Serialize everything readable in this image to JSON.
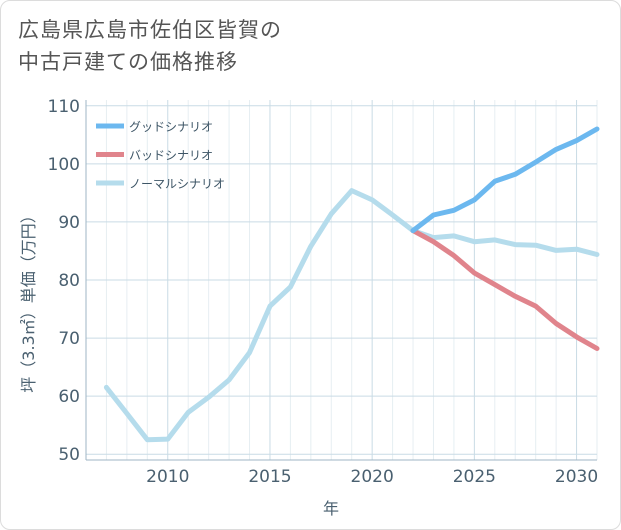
{
  "title_lines": [
    "広島県広島市佐伯区皆賀の",
    "中古戸建ての価格推移"
  ],
  "chart_data": {
    "type": "line",
    "xlabel": "年",
    "ylabel": "坪（3.3㎡）単価（万円）",
    "xlim": [
      2006,
      2031
    ],
    "ylim": [
      49,
      111
    ],
    "x_ticks": [
      2010,
      2015,
      2020,
      2025,
      2030
    ],
    "y_ticks": [
      50,
      60,
      70,
      80,
      90,
      100,
      110
    ],
    "grid": true,
    "legend_position": "top-left",
    "series": [
      {
        "name": "グッドシナリオ",
        "color": "#6cb8ef",
        "x": [
          2022,
          2023,
          2024,
          2025,
          2026,
          2027,
          2028,
          2029,
          2030,
          2031
        ],
        "y": [
          88.5,
          91.2,
          92.0,
          93.8,
          97.0,
          98.2,
          100.3,
          102.5,
          104.0,
          106.0
        ]
      },
      {
        "name": "バッドシナリオ",
        "color": "#e0848c",
        "x": [
          2022,
          2023,
          2024,
          2025,
          2026,
          2027,
          2028,
          2029,
          2030,
          2031
        ],
        "y": [
          88.5,
          86.6,
          84.2,
          81.2,
          79.2,
          77.2,
          75.5,
          72.5,
          70.2,
          68.2
        ]
      },
      {
        "name": "ノーマルシナリオ",
        "color": "#b5dcec",
        "x": [
          2007,
          2008,
          2009,
          2010,
          2011,
          2012,
          2013,
          2014,
          2015,
          2016,
          2017,
          2018,
          2019,
          2020,
          2021,
          2022,
          2023,
          2024,
          2025,
          2026,
          2027,
          2028,
          2029,
          2030,
          2031
        ],
        "y": [
          61.5,
          57.0,
          52.5,
          52.6,
          57.2,
          59.8,
          62.8,
          67.5,
          75.5,
          78.8,
          85.8,
          91.4,
          95.4,
          93.8,
          91.2,
          88.5,
          87.3,
          87.6,
          86.6,
          86.9,
          86.1,
          86.0,
          85.1,
          85.3,
          84.4
        ]
      }
    ]
  }
}
